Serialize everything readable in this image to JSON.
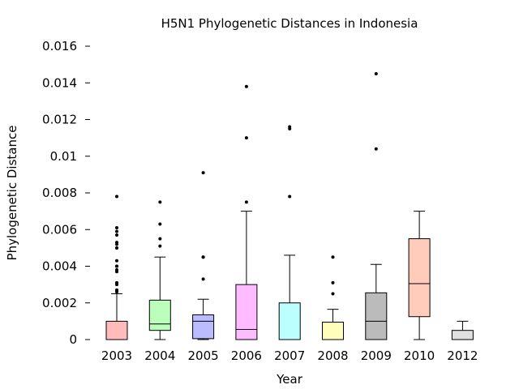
{
  "chart_data": {
    "type": "box",
    "title": "H5N1 Phylogenetic Distances in Indonesia",
    "xlabel": "Year",
    "ylabel": "Phylogenetic Distance",
    "ylim": [
      0,
      0.016
    ],
    "yticks": [
      "0",
      "0.002",
      "0.004",
      "0.006",
      "0.008",
      "0.01",
      "0.012",
      "0.014",
      "0.016"
    ],
    "yticks_values": [
      0,
      0.002,
      0.004,
      0.006,
      0.008,
      0.01,
      0.012,
      0.014,
      0.016
    ],
    "grid": false,
    "categories": [
      "2003",
      "2004",
      "2005",
      "2006",
      "2007",
      "2008",
      "2009",
      "2010",
      "2012"
    ],
    "boxes": [
      {
        "category": "2003",
        "whisker_low": 0,
        "q1": 0,
        "median": 0,
        "q3": 0.001,
        "whisker_high": 0.0025,
        "color": "#ffbbbb",
        "outliers": [
          0.0026,
          0.0027,
          0.003,
          0.0031,
          0.0037,
          0.0038,
          0.004,
          0.004,
          0.0043,
          0.005,
          0.005,
          0.0052,
          0.0053,
          0.0057,
          0.0059,
          0.0061,
          0.0078
        ]
      },
      {
        "category": "2004",
        "whisker_low": 0,
        "q1": 0.0005,
        "median": 0.00085,
        "q3": 0.00215,
        "whisker_high": 0.0045,
        "color": "#bbffbb",
        "outliers": [
          0.0051,
          0.0055,
          0.0063,
          0.0075
        ]
      },
      {
        "category": "2005",
        "whisker_low": 0,
        "q1": 5e-05,
        "median": 0.001,
        "q3": 0.00135,
        "whisker_high": 0.0022,
        "color": "#bbbbff",
        "outliers": [
          0.0033,
          0.0045,
          0.0045,
          0.0091
        ]
      },
      {
        "category": "2006",
        "whisker_low": 0,
        "q1": 0,
        "median": 0.00055,
        "q3": 0.003,
        "whisker_high": 0.007,
        "color": "#ffbbff",
        "outliers": [
          0.0075,
          0.011,
          0.0138
        ]
      },
      {
        "category": "2007",
        "whisker_low": 0,
        "q1": 0,
        "median": 0,
        "q3": 0.002,
        "whisker_high": 0.0046,
        "color": "#bbffff",
        "outliers": [
          0.0078,
          0.0115,
          0.0116
        ]
      },
      {
        "category": "2008",
        "whisker_low": 0,
        "q1": 0,
        "median": 0,
        "q3": 0.00095,
        "whisker_high": 0.00165,
        "color": "#ffffbb",
        "outliers": [
          0.0025,
          0.0031,
          0.0045
        ]
      },
      {
        "category": "2009",
        "whisker_low": 0,
        "q1": 0,
        "median": 0.001,
        "q3": 0.00255,
        "whisker_high": 0.0041,
        "color": "#bbbbbb",
        "outliers": [
          0.0104,
          0.0145
        ]
      },
      {
        "category": "2010",
        "whisker_low": 0,
        "q1": 0.00125,
        "median": 0.00305,
        "q3": 0.0055,
        "whisker_high": 0.007,
        "color": "#ffccbb",
        "outliers": []
      },
      {
        "category": "2012",
        "whisker_low": 0,
        "q1": 0,
        "median": 0,
        "q3": 0.0005,
        "whisker_high": 0.001,
        "color": "#e0e0e0",
        "outliers": []
      }
    ]
  }
}
